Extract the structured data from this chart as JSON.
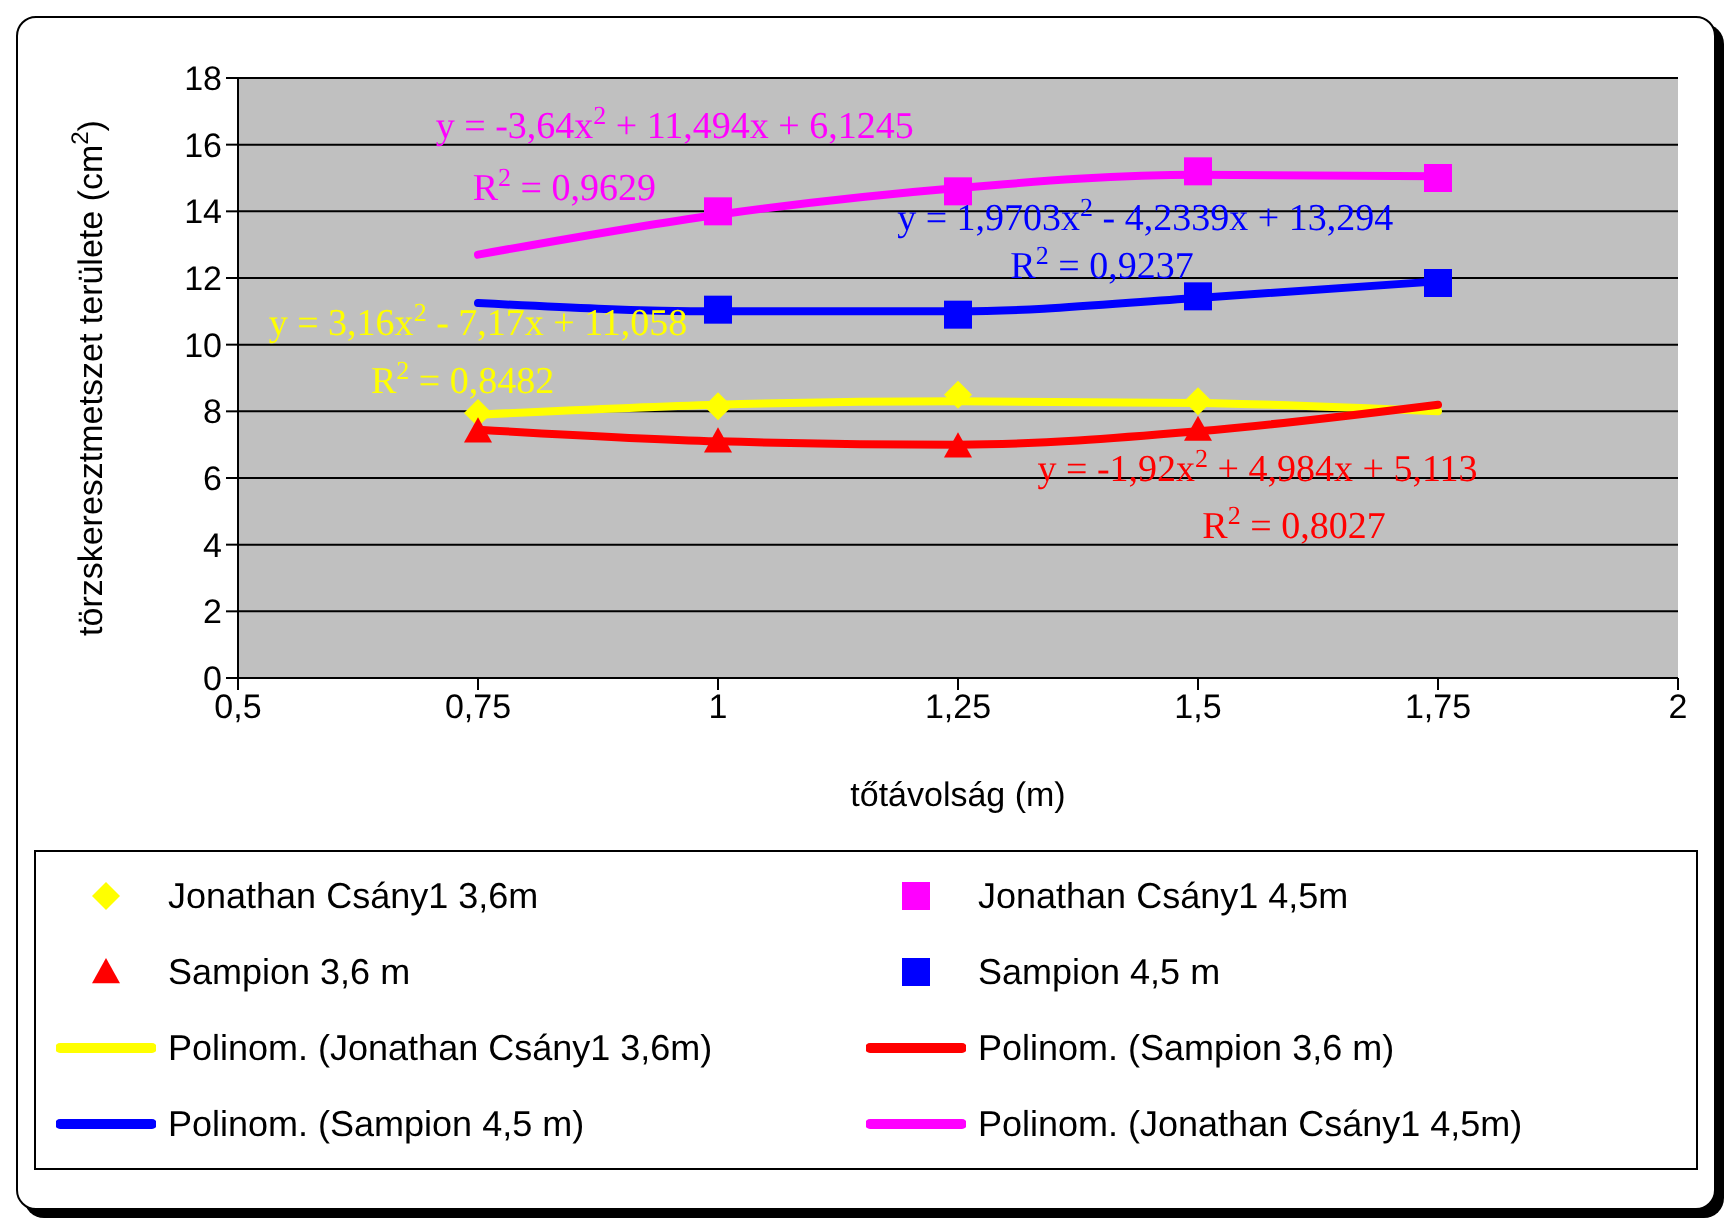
{
  "chart_data": {
    "type": "scatter",
    "xlabel": "tőtávolság (m)",
    "ylabel": "törzskeresztmetszet területe (cm$^{2}$)",
    "xlim": [
      0.5,
      2
    ],
    "xticks": [
      {
        "value": 0.5,
        "label": "0,5"
      },
      {
        "value": 0.75,
        "label": "0,75"
      },
      {
        "value": 1,
        "label": "1"
      },
      {
        "value": 1.25,
        "label": "1,25"
      },
      {
        "value": 1.5,
        "label": "1,5"
      },
      {
        "value": 1.75,
        "label": "1,75"
      },
      {
        "value": 2,
        "label": "2"
      }
    ],
    "ylim": [
      0,
      18
    ],
    "yticks": [
      0,
      2,
      4,
      6,
      8,
      10,
      12,
      14,
      16,
      18
    ],
    "grid": "y",
    "legend": "bottom",
    "series": [
      {
        "name": "Jonathan Csány1 3,6m",
        "marker": "diamond",
        "color": "#ffff00",
        "x": [
          0.75,
          1,
          1.25,
          1.5
        ],
        "values": [
          7.95,
          8.15,
          8.5,
          8.3
        ]
      },
      {
        "name": "Jonathan Csány1 4,5m",
        "marker": "square",
        "color": "#ff00ff",
        "x": [
          1,
          1.25,
          1.5,
          1.75
        ],
        "values": [
          14.0,
          14.6,
          15.2,
          15.0
        ]
      },
      {
        "name": "Sampion 3,6 m",
        "marker": "triangle",
        "color": "#ff0000",
        "x": [
          0.75,
          1,
          1.25,
          1.5
        ],
        "values": [
          7.4,
          7.1,
          6.95,
          7.45
        ]
      },
      {
        "name": "Sampion 4,5 m",
        "marker": "square",
        "color": "#0000ff",
        "x": [
          1,
          1.25,
          1.5,
          1.75
        ],
        "values": [
          11.05,
          10.9,
          11.45,
          11.85
        ]
      },
      {
        "name": "Polinom. (Jonathan Csány1 3,6m)",
        "type": "line",
        "color": "#ffff00",
        "x": [
          0.75,
          1,
          1.25,
          1.5,
          1.75
        ],
        "values": [
          7.9,
          8.2,
          8.3,
          8.25,
          8.0
        ]
      },
      {
        "name": "Polinom. (Sampion 3,6 m)",
        "type": "line",
        "color": "#ff0000",
        "x": [
          0.75,
          1,
          1.25,
          1.5,
          1.75
        ],
        "values": [
          7.45,
          7.1,
          7.0,
          7.4,
          8.2
        ]
      },
      {
        "name": "Polinom. (Sampion 4,5 m)",
        "type": "line",
        "color": "#0000ff",
        "x": [
          0.75,
          1,
          1.25,
          1.5,
          1.75
        ],
        "values": [
          11.25,
          11.0,
          11.0,
          11.4,
          11.9
        ]
      },
      {
        "name": "Polinom. (Jonathan Csány1 4,5m)",
        "type": "line",
        "color": "#ff00ff",
        "x": [
          0.75,
          1,
          1.25,
          1.5,
          1.75
        ],
        "values": [
          12.7,
          13.9,
          14.7,
          15.1,
          15.05
        ]
      }
    ],
    "annotations": [
      "y = -3,64x$^{2}$ + 11,494x + 6,1245",
      "R$^{2}$ = 0,9629",
      "y = 1,9703x$^{2}$ - 4,2339x + 13,294",
      "R$^{2}$ = 0,9237",
      "y = 3,16x$^{2}$ - 7,17x + 11,058",
      "R$^{2}$ = 0,8482",
      "y = -1,92x$^{2}$ + 4,984x + 5,113",
      "R$^{2}$ = 0,8027"
    ]
  }
}
